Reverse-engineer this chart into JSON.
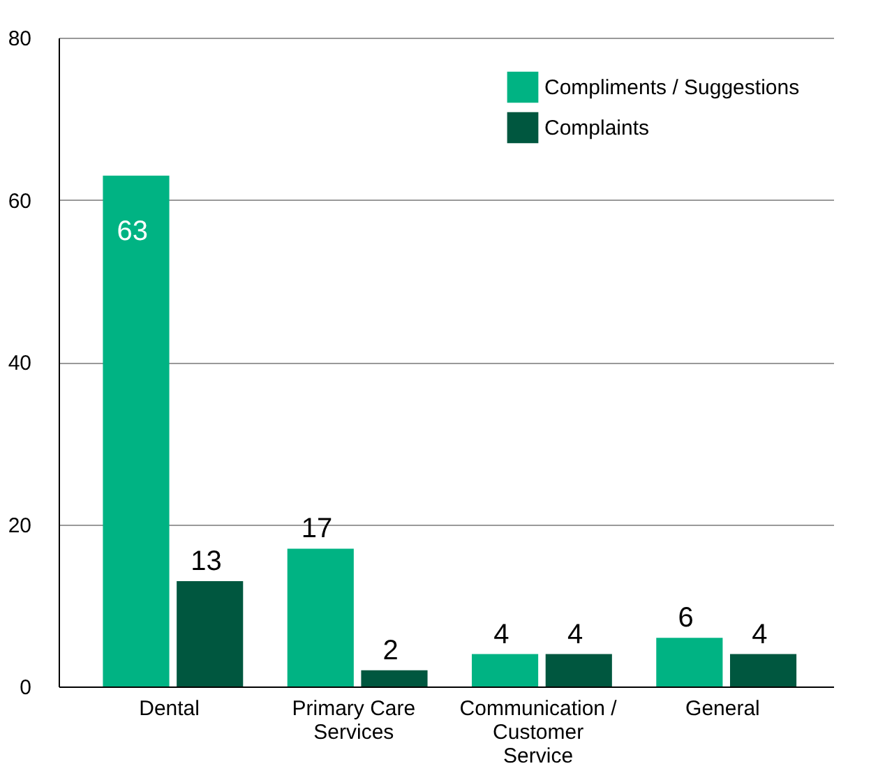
{
  "chart_data": {
    "type": "bar",
    "categories": [
      "Dental",
      "Primary Care Services",
      "Communication / Customer Service",
      "General"
    ],
    "series": [
      {
        "name": "Compliments / Suggestions",
        "color": "#00b383",
        "values": [
          63,
          17,
          4,
          6
        ]
      },
      {
        "name": "Complaints",
        "color": "#00573f",
        "values": [
          13,
          2,
          4,
          4
        ]
      }
    ],
    "ylim": [
      0,
      80
    ],
    "yticks": [
      0,
      20,
      40,
      60,
      80
    ],
    "grid": "y",
    "legend": "top right",
    "data_labels": true
  }
}
